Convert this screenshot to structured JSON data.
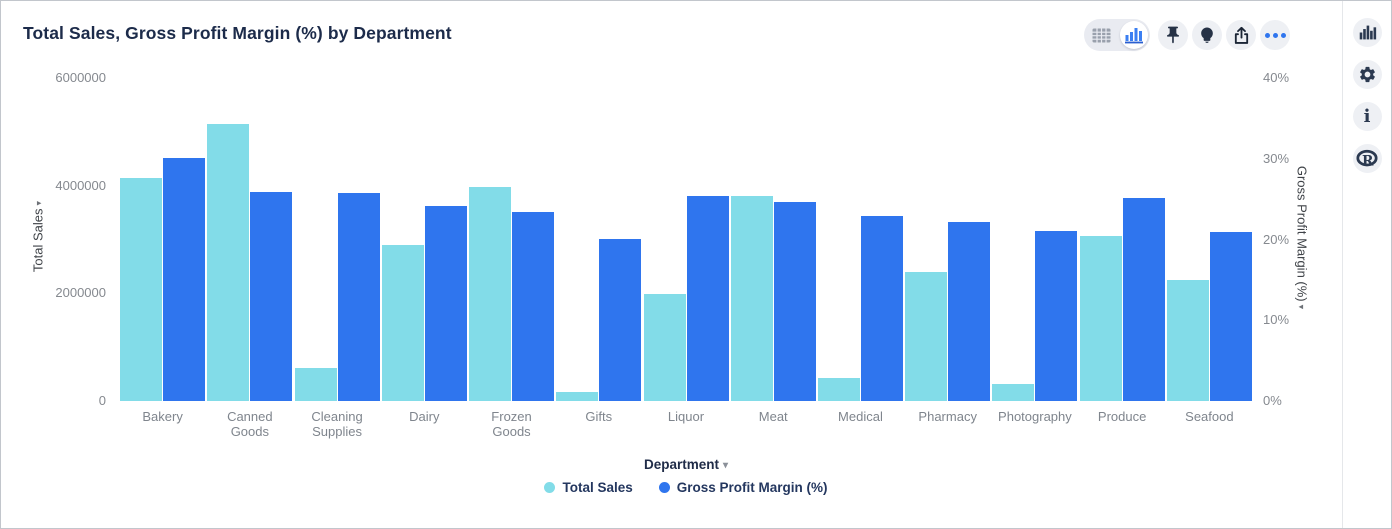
{
  "header": {
    "title": "Total Sales, Gross Profit Margin (%) by Department"
  },
  "toolbar": {
    "view_toggle": {
      "options": [
        "table-view",
        "chart-view"
      ],
      "selected": "chart-view"
    },
    "buttons": [
      "pin",
      "insights-bulb",
      "export-share",
      "more-options"
    ]
  },
  "side_rail": {
    "buttons": [
      "chart-type",
      "settings-gear",
      "info",
      "r-logo"
    ]
  },
  "icons": {
    "sort_arrow": "▾",
    "dropdown_arrow": "▾"
  },
  "colors": {
    "total_sales": "#82DCE8",
    "gross_profit_margin": "#2F75EE",
    "accent_blue": "#2F75EE",
    "icon_dark": "#2B3950",
    "button_bg": "#EEF0F4",
    "title_text": "#1C2B4A",
    "tick_text": "#85898F"
  },
  "chart_data": {
    "type": "bar",
    "title": "Total Sales, Gross Profit Margin (%) by Department",
    "categories": [
      "Bakery",
      "Canned Goods",
      "Cleaning Supplies",
      "Dairy",
      "Frozen Goods",
      "Gifts",
      "Liquor",
      "Meat",
      "Medical",
      "Pharmacy",
      "Photography",
      "Produce",
      "Seafood"
    ],
    "series": [
      {
        "name": "Total Sales",
        "axis": "left",
        "color": "#82DCE8",
        "values": [
          4150000,
          5150000,
          610000,
          2900000,
          3970000,
          170000,
          1980000,
          3800000,
          430000,
          2400000,
          320000,
          3060000,
          2250000
        ]
      },
      {
        "name": "Gross Profit Margin (%)",
        "axis": "right",
        "color": "#2F75EE",
        "values": [
          30.1,
          25.9,
          25.8,
          24.1,
          23.4,
          20.1,
          25.4,
          24.6,
          22.9,
          22.2,
          21.1,
          25.2,
          20.9
        ]
      }
    ],
    "y_left": {
      "label": "Total Sales",
      "min": 0,
      "max": 6000000,
      "ticks": [
        0,
        2000000,
        4000000,
        6000000
      ],
      "tick_labels": [
        "0",
        "2000000",
        "4000000",
        "6000000"
      ]
    },
    "y_right": {
      "label": "Gross Profit Margin (%)",
      "min": 0,
      "max": 40,
      "ticks": [
        0,
        10,
        20,
        30,
        40
      ],
      "tick_labels": [
        "0%",
        "10%",
        "20%",
        "30%",
        "40%"
      ]
    },
    "xlabel": "Department",
    "grid": false,
    "legend_position": "bottom"
  }
}
